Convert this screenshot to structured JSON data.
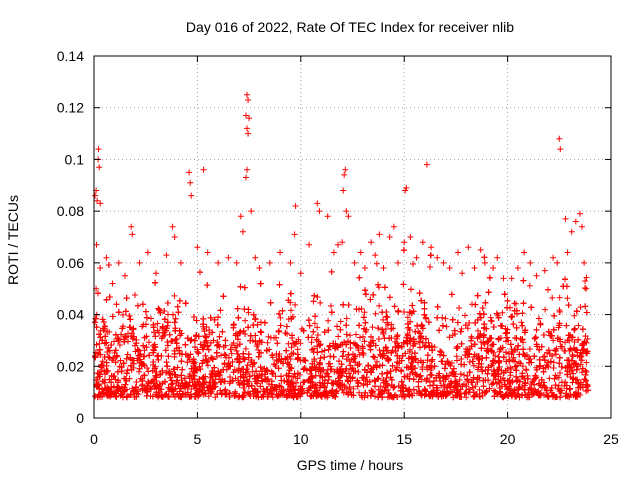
{
  "chart_data": {
    "type": "scatter",
    "title": "Day 016 of 2022, Rate Of TEC Index for receiver nlib",
    "xlabel": "GPS time / hours",
    "ylabel": "ROTI / TECUs",
    "xlim": [
      0,
      25
    ],
    "ylim": [
      0,
      0.14
    ],
    "x_ticks": [
      0,
      5,
      10,
      15,
      20,
      25
    ],
    "x_tick_labels": [
      "0",
      "5",
      "10",
      "15",
      "20",
      "25"
    ],
    "y_ticks": [
      0,
      0.02,
      0.04,
      0.06,
      0.08,
      0.1,
      0.12,
      0.14
    ],
    "y_tick_labels": [
      "0",
      "0.02",
      "0.04",
      "0.06",
      "0.08",
      "0.1",
      "0.12",
      "0.14"
    ],
    "grid": true,
    "marker": "plus",
    "color": "#ff0000",
    "series": [
      {
        "points": [
          [
            0.05,
            0.086
          ],
          [
            0.1,
            0.088
          ],
          [
            0.15,
            0.084
          ],
          [
            0.2,
            0.1
          ],
          [
            0.22,
            0.104
          ],
          [
            0.25,
            0.097
          ],
          [
            0.3,
            0.083
          ],
          [
            0.12,
            0.067
          ],
          [
            0.1,
            0.05
          ],
          [
            0.3,
            0.058
          ],
          [
            0.6,
            0.062
          ],
          [
            0.9,
            0.052
          ],
          [
            1.2,
            0.06
          ],
          [
            1.5,
            0.055
          ],
          [
            1.8,
            0.074
          ],
          [
            1.85,
            0.071
          ],
          [
            2.2,
            0.06
          ],
          [
            2.6,
            0.064
          ],
          [
            3.0,
            0.056
          ],
          [
            3.5,
            0.063
          ],
          [
            3.8,
            0.074
          ],
          [
            3.9,
            0.07
          ],
          [
            4.2,
            0.06
          ],
          [
            4.6,
            0.095
          ],
          [
            4.65,
            0.091
          ],
          [
            4.7,
            0.086
          ],
          [
            5.0,
            0.066
          ],
          [
            5.3,
            0.096
          ],
          [
            5.5,
            0.064
          ],
          [
            6.0,
            0.06
          ],
          [
            6.5,
            0.062
          ],
          [
            6.9,
            0.06
          ],
          [
            7.1,
            0.078
          ],
          [
            7.2,
            0.072
          ],
          [
            7.35,
            0.093
          ],
          [
            7.4,
            0.096
          ],
          [
            7.4,
            0.125
          ],
          [
            7.45,
            0.123
          ],
          [
            7.35,
            0.117
          ],
          [
            7.5,
            0.116
          ],
          [
            7.4,
            0.112
          ],
          [
            7.45,
            0.11
          ],
          [
            7.6,
            0.08
          ],
          [
            7.8,
            0.062
          ],
          [
            8.0,
            0.058
          ],
          [
            8.5,
            0.06
          ],
          [
            9.0,
            0.064
          ],
          [
            9.5,
            0.06
          ],
          [
            9.7,
            0.071
          ],
          [
            9.75,
            0.082
          ],
          [
            10.0,
            0.056
          ],
          [
            10.4,
            0.067
          ],
          [
            10.8,
            0.083
          ],
          [
            10.9,
            0.08
          ],
          [
            11.3,
            0.078
          ],
          [
            11.6,
            0.064
          ],
          [
            11.8,
            0.067
          ],
          [
            12.0,
            0.068
          ],
          [
            12.05,
            0.088
          ],
          [
            12.1,
            0.094
          ],
          [
            12.15,
            0.096
          ],
          [
            12.2,
            0.08
          ],
          [
            12.3,
            0.078
          ],
          [
            12.6,
            0.06
          ],
          [
            12.9,
            0.064
          ],
          [
            13.1,
            0.058
          ],
          [
            13.4,
            0.068
          ],
          [
            13.6,
            0.063
          ],
          [
            13.8,
            0.071
          ],
          [
            14.0,
            0.058
          ],
          [
            14.3,
            0.07
          ],
          [
            14.5,
            0.074
          ],
          [
            14.7,
            0.06
          ],
          [
            15.0,
            0.068
          ],
          [
            15.05,
            0.088
          ],
          [
            15.1,
            0.089
          ],
          [
            15.3,
            0.07
          ],
          [
            15.6,
            0.062
          ],
          [
            15.9,
            0.068
          ],
          [
            16.1,
            0.098
          ],
          [
            16.3,
            0.066
          ],
          [
            16.6,
            0.062
          ],
          [
            16.9,
            0.06
          ],
          [
            17.2,
            0.058
          ],
          [
            17.6,
            0.064
          ],
          [
            17.8,
            0.056
          ],
          [
            18.1,
            0.066
          ],
          [
            18.4,
            0.058
          ],
          [
            18.7,
            0.065
          ],
          [
            18.9,
            0.06
          ],
          [
            19.3,
            0.058
          ],
          [
            19.5,
            0.062
          ],
          [
            19.8,
            0.054
          ],
          [
            20.2,
            0.054
          ],
          [
            20.5,
            0.058
          ],
          [
            20.8,
            0.064
          ],
          [
            21.1,
            0.06
          ],
          [
            21.4,
            0.055
          ],
          [
            21.8,
            0.057
          ],
          [
            22.2,
            0.062
          ],
          [
            22.4,
            0.06
          ],
          [
            22.5,
            0.108
          ],
          [
            22.55,
            0.104
          ],
          [
            22.8,
            0.077
          ],
          [
            22.9,
            0.064
          ],
          [
            23.1,
            0.072
          ],
          [
            23.3,
            0.076
          ],
          [
            23.5,
            0.079
          ],
          [
            23.6,
            0.074
          ],
          [
            23.7,
            0.06
          ],
          [
            23.75,
            0.053
          ],
          [
            23.8,
            0.05
          ]
        ]
      }
    ]
  }
}
